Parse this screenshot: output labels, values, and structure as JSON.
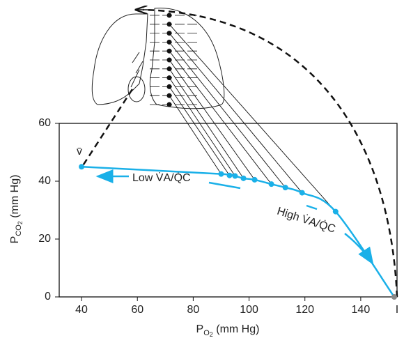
{
  "chart_data": {
    "type": "line",
    "x": [
      40,
      90,
      93,
      95,
      98,
      102,
      108,
      113,
      119,
      131,
      152
    ],
    "values": [
      45,
      42.5,
      42,
      41.8,
      41,
      40.5,
      39,
      37.8,
      36,
      29.5,
      0
    ],
    "color": "#1ab0e8",
    "markers": true,
    "xlim": [
      32,
      153
    ],
    "xticks": [
      40,
      60,
      80,
      100,
      120,
      140
    ],
    "ylim": [
      0,
      60
    ],
    "yticks": [
      0,
      20,
      40,
      60
    ],
    "x_label": [
      "P",
      "O",
      "2",
      " (mm Hg)"
    ],
    "y_label": [
      "P",
      "CO",
      "2",
      " (mm Hg)"
    ],
    "annotations": {
      "start": "v̄",
      "end": "I",
      "low": "Low V̇A/Q̇C",
      "high": "High V̇A/Q̇C"
    }
  }
}
